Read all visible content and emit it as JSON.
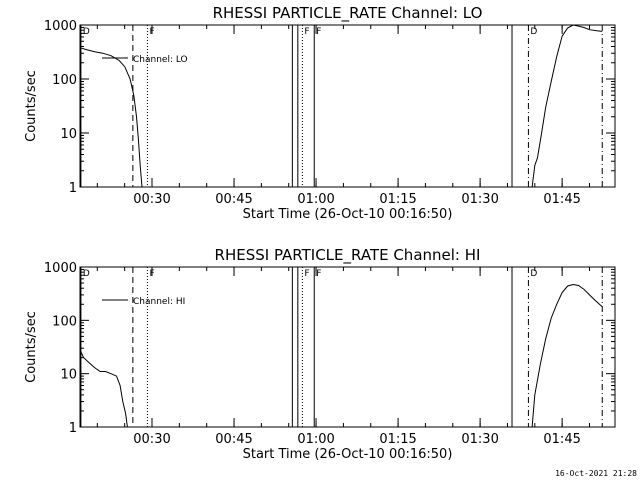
{
  "footer": {
    "timestamp": "16-Oct-2021 21:28"
  },
  "chart_data": [
    {
      "type": "line",
      "title": "RHESSI PARTICLE_RATE Channel: LO",
      "xlabel": "Start Time (26-Oct-10 00:16:50)",
      "ylabel": "Counts/sec",
      "yscale": "log",
      "ylim": [
        1,
        1000
      ],
      "xlim": [
        "00:16:50",
        "01:54:40"
      ],
      "x_ticks": [
        "00:30",
        "00:45",
        "01:00",
        "01:15",
        "01:30",
        "01:45"
      ],
      "y_ticks": [
        "1",
        "10",
        "100",
        "1000"
      ],
      "legend": {
        "entries": [
          "Channel: LO"
        ],
        "position": "top-left"
      },
      "series": [
        {
          "name": "Channel: LO",
          "x": [
            "00:16:50",
            "00:18:00",
            "00:19:30",
            "00:21:00",
            "00:22:30",
            "00:24:00",
            "00:25:00",
            "00:26:00",
            "00:26:40",
            "00:27:10",
            "00:27:30",
            "00:27:50",
            "00:28:10",
            "01:39:30",
            "01:40:00",
            "01:40:30",
            "01:41:10",
            "01:42:00",
            "01:43:00",
            "01:44:00",
            "01:45:00",
            "01:46:00",
            "01:47:00",
            "01:47:40",
            "01:49:00",
            "01:50:00",
            "01:51:20",
            "01:52:20"
          ],
          "y": [
            380,
            350,
            320,
            300,
            270,
            220,
            170,
            100,
            50,
            20,
            8,
            2.5,
            1,
            1,
            2.5,
            3.5,
            9,
            30,
            90,
            260,
            620,
            880,
            1000,
            970,
            900,
            820,
            780,
            760
          ]
        }
      ],
      "markers": [
        {
          "label": "D",
          "x": "00:17:00",
          "style": "solid"
        },
        {
          "label": "",
          "x": "00:26:30",
          "style": "dashed"
        },
        {
          "label": "F",
          "x": "00:29:10",
          "style": "dotted"
        },
        {
          "label": "",
          "x": "00:55:40",
          "style": "solid"
        },
        {
          "label": "",
          "x": "00:56:40",
          "style": "solid"
        },
        {
          "label": "F",
          "x": "00:57:30",
          "style": "dotted"
        },
        {
          "label": "F",
          "x": "00:59:40",
          "style": "solid"
        },
        {
          "label": "",
          "x": "01:35:50",
          "style": "solid"
        },
        {
          "label": "D",
          "x": "01:38:50",
          "style": "dashdot"
        },
        {
          "label": "",
          "x": "01:52:20",
          "style": "dashdot"
        }
      ]
    },
    {
      "type": "line",
      "title": "RHESSI PARTICLE_RATE Channel: HI",
      "xlabel": "Start Time (26-Oct-10 00:16:50)",
      "ylabel": "Counts/sec",
      "yscale": "log",
      "ylim": [
        1,
        1000
      ],
      "xlim": [
        "00:16:50",
        "01:54:40"
      ],
      "x_ticks": [
        "00:30",
        "00:45",
        "01:00",
        "01:15",
        "01:30",
        "01:45"
      ],
      "y_ticks": [
        "1",
        "10",
        "100",
        "1000"
      ],
      "legend": {
        "entries": [
          "Channel: HI"
        ],
        "position": "top-left"
      },
      "series": [
        {
          "name": "Channel: HI",
          "x": [
            "00:16:50",
            "00:17:30",
            "00:18:30",
            "00:19:30",
            "00:20:30",
            "00:21:30",
            "00:22:30",
            "00:23:30",
            "00:24:10",
            "00:24:40",
            "00:25:10",
            "00:25:30",
            "01:39:30",
            "01:40:00",
            "01:41:00",
            "01:42:00",
            "01:43:00",
            "01:44:00",
            "01:45:00",
            "01:46:00",
            "01:47:00",
            "01:48:00",
            "01:49:00",
            "01:50:00",
            "01:51:00",
            "01:52:20"
          ],
          "y": [
            28,
            20,
            16,
            13,
            11,
            11,
            10,
            9,
            6,
            3,
            1.8,
            1,
            1,
            4,
            15,
            45,
            110,
            200,
            330,
            440,
            470,
            450,
            380,
            300,
            240,
            180
          ]
        }
      ],
      "markers": [
        {
          "label": "D",
          "x": "00:17:00",
          "style": "solid"
        },
        {
          "label": "",
          "x": "00:26:30",
          "style": "dashed"
        },
        {
          "label": "F",
          "x": "00:29:10",
          "style": "dotted"
        },
        {
          "label": "",
          "x": "00:55:40",
          "style": "solid"
        },
        {
          "label": "",
          "x": "00:56:40",
          "style": "solid"
        },
        {
          "label": "F",
          "x": "00:57:30",
          "style": "dotted"
        },
        {
          "label": "F",
          "x": "00:59:40",
          "style": "solid"
        },
        {
          "label": "",
          "x": "01:35:50",
          "style": "solid"
        },
        {
          "label": "D",
          "x": "01:38:50",
          "style": "dashdot"
        },
        {
          "label": "",
          "x": "01:52:20",
          "style": "dashdot"
        }
      ]
    }
  ]
}
